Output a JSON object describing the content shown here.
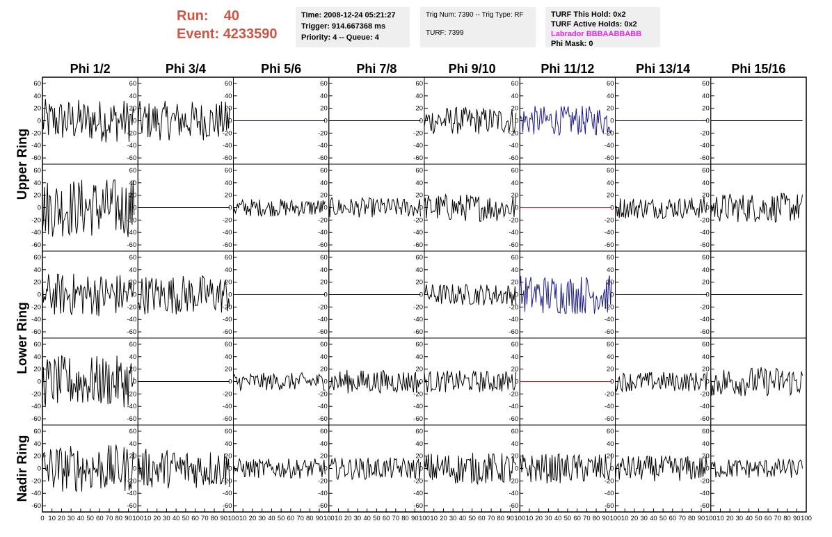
{
  "header": {
    "run_label": "Run:",
    "run_value": "40",
    "event_label": "Event:",
    "event_value": "4233590",
    "time": "Time: 2008-12-24 05:21:27",
    "trigger": "Trigger: 914.667368 ms",
    "priority": "Priority: 4 -- Queue: 4",
    "trig_num": "Trig Num: 7390 -- Trig Type: RF",
    "turf": "TURF: 7399",
    "turf_hold": "TURF This Hold: 0x2",
    "turf_active": "TURF Active Holds: 0x2",
    "labrador": "Labrador BBBAABBABB",
    "phi_mask": "Phi Mask: 0"
  },
  "colors": {
    "header_red": "#cc5544",
    "magenta": "#ee22ee",
    "trace": "#000000",
    "trace_blue": "#1a1a8c",
    "trace_red": "#cc2222",
    "panel_bg": "#efefef"
  },
  "chart_data": {
    "type": "line",
    "columns": [
      "Phi 1/2",
      "Phi 3/4",
      "Phi 5/6",
      "Phi 7/8",
      "Phi 9/10",
      "Phi 11/12",
      "Phi 13/14",
      "Phi 15/16"
    ],
    "row_labels": [
      "Upper Ring",
      "Lower Ring",
      "Nadir Ring"
    ],
    "xlim": [
      0,
      100
    ],
    "ylim": [
      -70,
      70
    ],
    "y_ticks": [
      60,
      40,
      20,
      0,
      -20,
      -40,
      -60
    ],
    "x_tick_labels": [
      "0",
      "10",
      "20",
      "30",
      "40",
      "50",
      "60",
      "70",
      "80",
      "90",
      "100"
    ],
    "grid": false,
    "panels": [
      {
        "row": 0,
        "col": 0,
        "amp": 22,
        "color": "black",
        "n": 92
      },
      {
        "row": 0,
        "col": 1,
        "amp": 20,
        "color": "black",
        "n": 92
      },
      {
        "row": 0,
        "col": 2,
        "amp": 0,
        "color": "blue",
        "n": 92
      },
      {
        "row": 0,
        "col": 3,
        "amp": 0,
        "color": "black",
        "n": 92
      },
      {
        "row": 0,
        "col": 4,
        "amp": 14,
        "color": "black",
        "n": 92
      },
      {
        "row": 0,
        "col": 5,
        "amp": 15,
        "color": "blue",
        "n": 92
      },
      {
        "row": 0,
        "col": 6,
        "amp": 0,
        "color": "blue",
        "n": 92
      },
      {
        "row": 0,
        "col": 7,
        "amp": 0,
        "color": "black",
        "n": 92
      },
      {
        "row": 1,
        "col": 0,
        "amp": 30,
        "color": "black",
        "n": 92
      },
      {
        "row": 1,
        "col": 1,
        "amp": 0,
        "color": "black",
        "n": 92
      },
      {
        "row": 1,
        "col": 2,
        "amp": 9,
        "color": "black",
        "n": 92
      },
      {
        "row": 1,
        "col": 3,
        "amp": 10,
        "color": "black",
        "n": 92
      },
      {
        "row": 1,
        "col": 4,
        "amp": 14,
        "color": "black",
        "n": 92
      },
      {
        "row": 1,
        "col": 5,
        "amp": 0,
        "color": "red",
        "n": 92
      },
      {
        "row": 1,
        "col": 6,
        "amp": 11,
        "color": "black",
        "n": 92
      },
      {
        "row": 1,
        "col": 7,
        "amp": 15,
        "color": "black",
        "n": 92
      },
      {
        "row": 2,
        "col": 0,
        "amp": 22,
        "color": "black",
        "n": 92
      },
      {
        "row": 2,
        "col": 1,
        "amp": 20,
        "color": "black",
        "n": 92
      },
      {
        "row": 2,
        "col": 2,
        "amp": 0,
        "color": "blue",
        "n": 92
      },
      {
        "row": 2,
        "col": 3,
        "amp": 0,
        "color": "black",
        "n": 92
      },
      {
        "row": 2,
        "col": 4,
        "amp": 11,
        "color": "black",
        "n": 92
      },
      {
        "row": 2,
        "col": 5,
        "amp": 20,
        "color": "blue",
        "n": 92
      },
      {
        "row": 2,
        "col": 6,
        "amp": 0,
        "color": "blue",
        "n": 92
      },
      {
        "row": 2,
        "col": 7,
        "amp": 0,
        "color": "black",
        "n": 92
      },
      {
        "row": 3,
        "col": 0,
        "amp": 26,
        "color": "black",
        "n": 92
      },
      {
        "row": 3,
        "col": 1,
        "amp": 0,
        "color": "black",
        "n": 92
      },
      {
        "row": 3,
        "col": 2,
        "amp": 9,
        "color": "black",
        "n": 92
      },
      {
        "row": 3,
        "col": 3,
        "amp": 12,
        "color": "black",
        "n": 92
      },
      {
        "row": 3,
        "col": 4,
        "amp": 11,
        "color": "black",
        "n": 92
      },
      {
        "row": 3,
        "col": 5,
        "amp": 0,
        "color": "red",
        "n": 92
      },
      {
        "row": 3,
        "col": 6,
        "amp": 10,
        "color": "black",
        "n": 92
      },
      {
        "row": 3,
        "col": 7,
        "amp": 15,
        "color": "black",
        "n": 92
      },
      {
        "row": 4,
        "col": 0,
        "amp": 24,
        "color": "black",
        "n": 92
      },
      {
        "row": 4,
        "col": 1,
        "amp": 20,
        "color": "black",
        "n": 92
      },
      {
        "row": 4,
        "col": 2,
        "amp": 10,
        "color": "black",
        "n": 92
      },
      {
        "row": 4,
        "col": 3,
        "amp": 11,
        "color": "black",
        "n": 92
      },
      {
        "row": 4,
        "col": 4,
        "amp": 16,
        "color": "black",
        "n": 92
      },
      {
        "row": 4,
        "col": 5,
        "amp": 15,
        "color": "black",
        "n": 92
      },
      {
        "row": 4,
        "col": 6,
        "amp": 13,
        "color": "black",
        "n": 92
      },
      {
        "row": 4,
        "col": 7,
        "amp": 10,
        "color": "black",
        "n": 92
      }
    ]
  }
}
